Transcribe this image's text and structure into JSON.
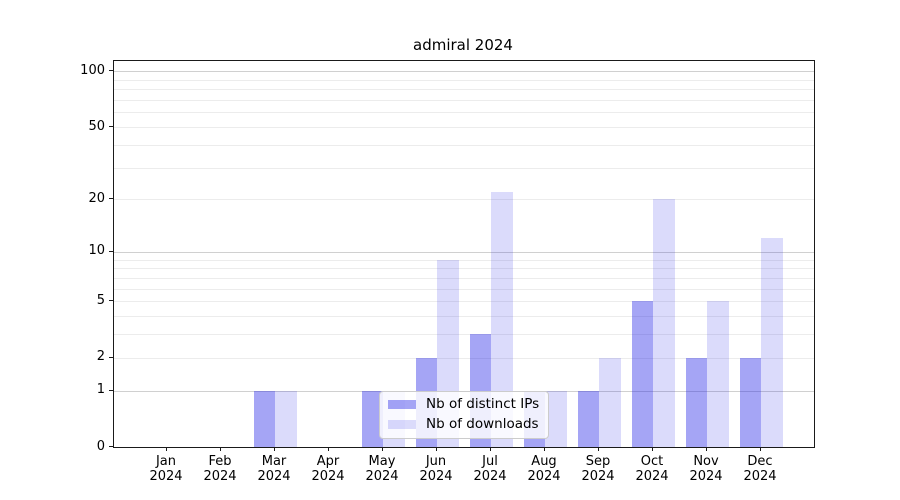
{
  "figure": {
    "title": "admiral 2024",
    "background_color": "#ffffff"
  },
  "chart_data": {
    "type": "bar",
    "title": "admiral 2024",
    "categories": [
      "Jan 2024",
      "Feb 2024",
      "Mar 2024",
      "Apr 2024",
      "May 2024",
      "Jun 2024",
      "Jul 2024",
      "Aug 2024",
      "Sep 2024",
      "Oct 2024",
      "Nov 2024",
      "Dec 2024"
    ],
    "category_line1": [
      "Jan",
      "Feb",
      "Mar",
      "Apr",
      "May",
      "Jun",
      "Jul",
      "Aug",
      "Sep",
      "Oct",
      "Nov",
      "Dec"
    ],
    "category_line2": [
      "2024",
      "2024",
      "2024",
      "2024",
      "2024",
      "2024",
      "2024",
      "2024",
      "2024",
      "2024",
      "2024",
      "2024"
    ],
    "series": [
      {
        "name": "Nb of distinct IPs",
        "color": "rgba(30,30,230,0.40)",
        "color_on_white_hex": "#a9a9f5",
        "values": [
          0,
          0,
          1,
          0,
          1,
          2,
          3,
          1,
          1,
          5,
          2,
          2
        ]
      },
      {
        "name": "Nb of downloads",
        "color": "rgba(30,30,230,0.16)",
        "color_on_white_hex": "#dbdbfa",
        "values": [
          0,
          0,
          1,
          0,
          1,
          9,
          22,
          1,
          2,
          20,
          5,
          12
        ]
      }
    ],
    "xlabel": "",
    "ylabel": "",
    "yscale": "log1p",
    "ylim": [
      0,
      114
    ],
    "ytick_values": [
      0,
      1,
      2,
      5,
      10,
      20,
      50,
      100
    ],
    "ytick_labels": [
      "0",
      "1",
      "2",
      "5",
      "10",
      "20",
      "50",
      "100"
    ],
    "major_gridline_values": [
      1,
      10,
      100
    ],
    "minor_gridline_values": [
      2,
      3,
      4,
      5,
      6,
      7,
      8,
      9,
      20,
      30,
      40,
      50,
      60,
      70,
      80,
      90
    ],
    "grid": "horizontal",
    "legend_position": "inside lower center",
    "legend_entries": [
      "Nb of distinct IPs",
      "Nb of downloads"
    ]
  },
  "colors": {
    "major_grid": "#d0d0d0",
    "minor_grid": "#ececec",
    "spine": "#1a1a1a",
    "text": "#000000",
    "legend_border": "#cccccc"
  }
}
